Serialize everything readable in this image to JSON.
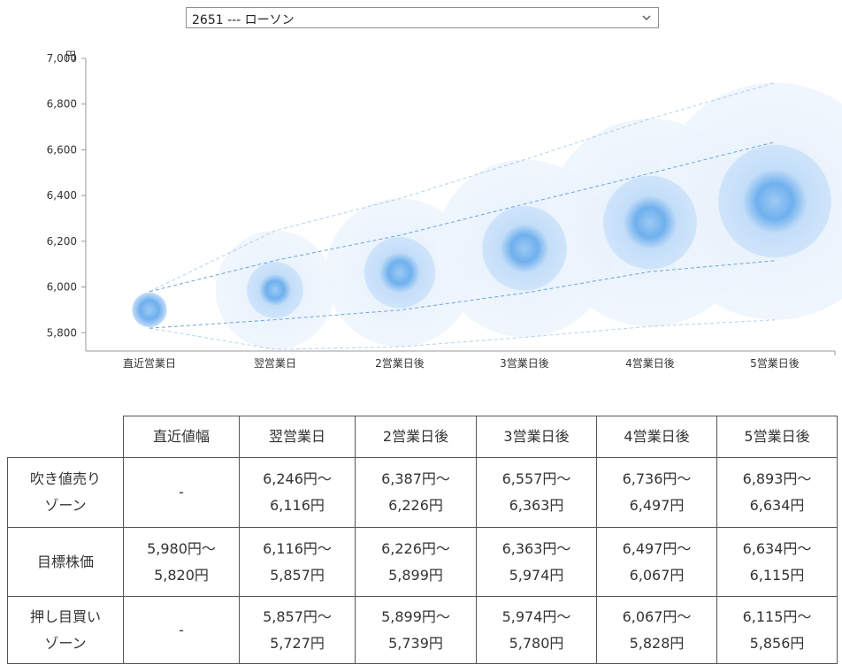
{
  "selector": {
    "value": "2651 --- ローソン"
  },
  "chart_data": {
    "type": "bubble-range",
    "unit_label": "円",
    "categories": [
      "直近営業日",
      "翌営業日",
      "2営業日後",
      "3営業日後",
      "4営業日後",
      "5営業日後"
    ],
    "ylim": [
      5720,
      7000
    ],
    "yticks": [
      5800,
      6000,
      6200,
      6400,
      6600,
      6800,
      7000
    ],
    "ytick_labels": [
      "5,800",
      "6,000",
      "6,200",
      "6,400",
      "6,600",
      "6,800",
      "7,000"
    ],
    "outer_upper": [
      5980,
      6246,
      6387,
      6557,
      6736,
      6893
    ],
    "inner_upper": [
      5980,
      6116,
      6226,
      6363,
      6497,
      6634
    ],
    "center": [
      5900,
      5987,
      6063,
      6169,
      6282,
      6375
    ],
    "inner_lower": [
      5820,
      5857,
      5899,
      5974,
      6067,
      6115
    ],
    "outer_lower": [
      5820,
      5727,
      5739,
      5780,
      5828,
      5856
    ],
    "colors": {
      "core": "#3a8ee6",
      "inner_zone": "#a9cff5",
      "outer_zone": "#e4f0fc",
      "guide": "#5b9bd5"
    }
  },
  "table": {
    "headers": [
      "",
      "直近値幅",
      "翌営業日",
      "2営業日後",
      "3営業日後",
      "4営業日後",
      "5営業日後"
    ],
    "rows": [
      {
        "label": [
          "吹き値売り",
          "ゾーン"
        ],
        "cells": [
          [
            "-"
          ],
          [
            "6,246円〜",
            "6,116円"
          ],
          [
            "6,387円〜",
            "6,226円"
          ],
          [
            "6,557円〜",
            "6,363円"
          ],
          [
            "6,736円〜",
            "6,497円"
          ],
          [
            "6,893円〜",
            "6,634円"
          ]
        ]
      },
      {
        "label": [
          "目標株価"
        ],
        "cells": [
          [
            "5,980円〜",
            "5,820円"
          ],
          [
            "6,116円〜",
            "5,857円"
          ],
          [
            "6,226円〜",
            "5,899円"
          ],
          [
            "6,363円〜",
            "5,974円"
          ],
          [
            "6,497円〜",
            "6,067円"
          ],
          [
            "6,634円〜",
            "6,115円"
          ]
        ]
      },
      {
        "label": [
          "押し目買い",
          "ゾーン"
        ],
        "cells": [
          [
            "-"
          ],
          [
            "5,857円〜",
            "5,727円"
          ],
          [
            "5,899円〜",
            "5,739円"
          ],
          [
            "5,974円〜",
            "5,780円"
          ],
          [
            "6,067円〜",
            "5,828円"
          ],
          [
            "6,115円〜",
            "5,856円"
          ]
        ]
      }
    ]
  }
}
